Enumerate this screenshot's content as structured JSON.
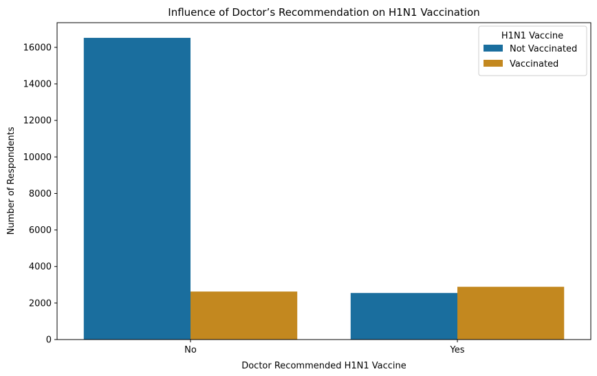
{
  "chart_data": {
    "type": "bar",
    "title": "Influence of Doctor’s Recommendation on H1N1 Vaccination",
    "xlabel": "Doctor Recommended H1N1 Vaccine",
    "ylabel": "Number of Respondents",
    "categories": [
      "No",
      "Yes"
    ],
    "series": [
      {
        "name": "Not Vaccinated",
        "values": [
          16520,
          2550
        ]
      },
      {
        "name": "Vaccinated",
        "values": [
          2630,
          2890
        ]
      }
    ],
    "ylim": [
      0,
      17350
    ],
    "yticks": [
      0,
      2000,
      4000,
      6000,
      8000,
      10000,
      12000,
      14000,
      16000
    ],
    "legend": {
      "title": "H1N1 Vaccine",
      "position": "top-right"
    },
    "colors": [
      "#1a6e9e",
      "#c3881f"
    ],
    "grid": false
  }
}
